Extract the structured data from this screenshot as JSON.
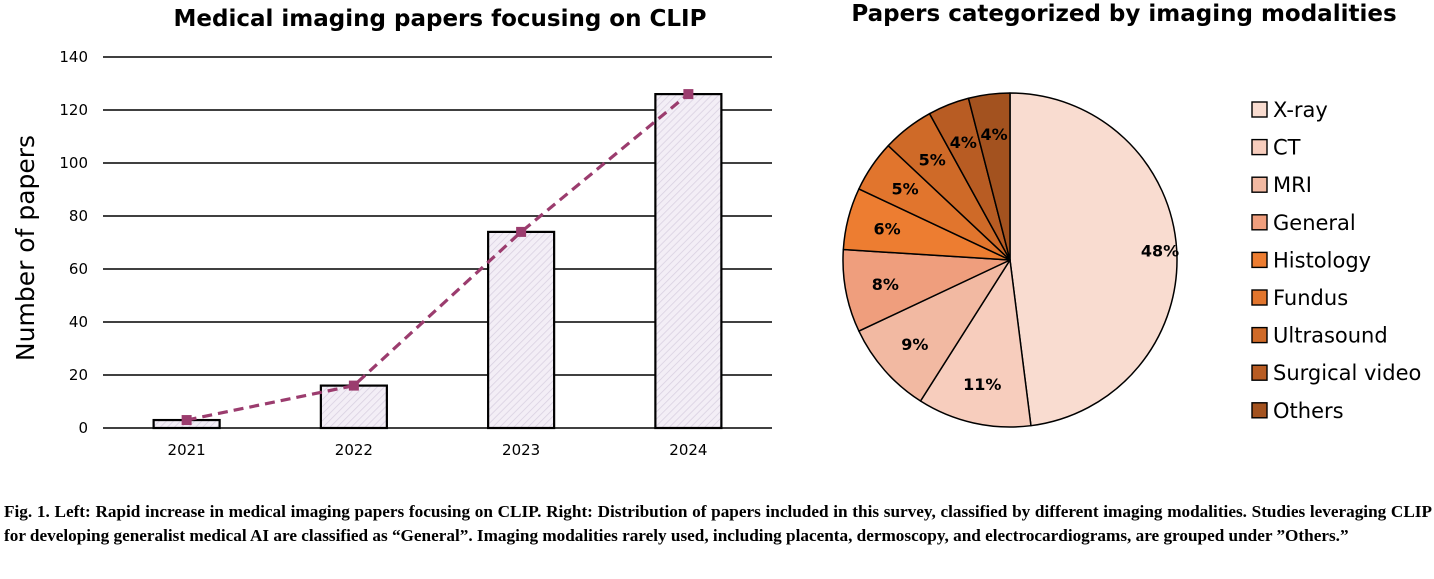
{
  "chart_data": [
    {
      "type": "bar",
      "title": "Medical imaging papers focusing on CLIP",
      "xlabel": "",
      "ylabel": "Number of papers",
      "categories": [
        "2021",
        "2022",
        "2023",
        "2024"
      ],
      "values": [
        3,
        16,
        74,
        126
      ],
      "overlay_line": {
        "style": "dashed",
        "markers": "square",
        "values": [
          3,
          16,
          74,
          126
        ]
      },
      "ylim": [
        0,
        140
      ],
      "yticks": [
        0,
        20,
        40,
        60,
        80,
        100,
        120,
        140
      ],
      "grid": true,
      "colors": {
        "bar_fill": "#f3eef6",
        "bar_hatch": "#d8cfe0",
        "bar_edge": "#000000",
        "line": "#9b3c6e"
      }
    },
    {
      "type": "pie",
      "title": "Papers categorized by imaging modalities",
      "legend_position": "right",
      "slices": [
        {
          "label": "X-ray",
          "value": 48,
          "display": "48%",
          "color": "#f9dcd0"
        },
        {
          "label": "CT",
          "value": 11,
          "display": "11%",
          "color": "#f7cdbd"
        },
        {
          "label": "MRI",
          "value": 9,
          "display": "9%",
          "color": "#f2b9a2"
        },
        {
          "label": "General",
          "value": 8,
          "display": "8%",
          "color": "#ef9e7d"
        },
        {
          "label": "Histology",
          "value": 6,
          "display": "6%",
          "color": "#ed7d31"
        },
        {
          "label": "Fundus",
          "value": 5,
          "display": "5%",
          "color": "#e1752d"
        },
        {
          "label": "Ultrasound",
          "value": 5,
          "display": "5%",
          "color": "#cf6a28"
        },
        {
          "label": "Surgical video",
          "value": 4,
          "display": "4%",
          "color": "#b85c23"
        },
        {
          "label": "Others",
          "value": 4,
          "display": "4%",
          "color": "#a3521f"
        }
      ]
    }
  ],
  "caption": "Fig. 1. Left: Rapid increase in medical imaging papers focusing on CLIP. Right: Distribution of papers included in this survey, classified by different imaging modalities. Studies leveraging CLIP for developing generalist medical AI are classified as “General”. Imaging modalities rarely used, including placenta, dermoscopy, and electrocardiograms, are grouped under ”Others.”"
}
